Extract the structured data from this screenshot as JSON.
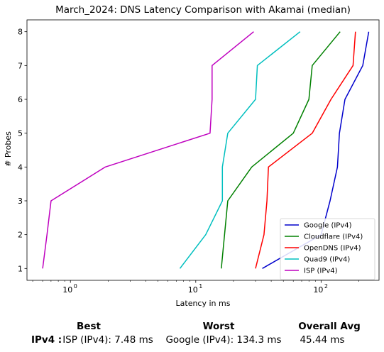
{
  "chart_data": {
    "type": "line",
    "title": "March_2024: DNS Latency Comparison with Akamai (median)",
    "xlabel": "Latency in ms",
    "ylabel": "# Probes",
    "xscale": "log",
    "xlim": [
      0.45,
      290
    ],
    "ylim": [
      0.65,
      8.35
    ],
    "xticks": [
      {
        "value": 1,
        "base": "10",
        "exp": "0"
      },
      {
        "value": 10,
        "base": "10",
        "exp": "1"
      },
      {
        "value": 100,
        "base": "10",
        "exp": "2"
      }
    ],
    "yticks": [
      "1",
      "2",
      "3",
      "4",
      "5",
      "6",
      "7",
      "8"
    ],
    "legend_position": "lower-right",
    "series": [
      {
        "name": "Google (IPv4)",
        "color": "#0000cc",
        "points": [
          [
            34,
            1
          ],
          [
            100,
            2
          ],
          [
            118,
            3
          ],
          [
            135,
            4
          ],
          [
            140,
            5
          ],
          [
            155,
            6
          ],
          [
            215,
            7
          ],
          [
            240,
            8
          ]
        ]
      },
      {
        "name": "Cloudflare (IPv4)",
        "color": "#008000",
        "points": [
          [
            16,
            1
          ],
          [
            18,
            3
          ],
          [
            28,
            4
          ],
          [
            60,
            5
          ],
          [
            80,
            6
          ],
          [
            85,
            7
          ],
          [
            142,
            8
          ]
        ]
      },
      {
        "name": "OpenDNS (IPv4)",
        "color": "#ff0000",
        "points": [
          [
            30,
            1
          ],
          [
            35,
            2
          ],
          [
            37,
            3
          ],
          [
            38,
            4
          ],
          [
            85,
            5
          ],
          [
            120,
            6
          ],
          [
            180,
            7
          ],
          [
            188,
            8
          ]
        ]
      },
      {
        "name": "Quad9 (IPv4)",
        "color": "#00bfbf",
        "points": [
          [
            7.48,
            1
          ],
          [
            12,
            2
          ],
          [
            16.3,
            3
          ],
          [
            16.3,
            4
          ],
          [
            18,
            5
          ],
          [
            30,
            6
          ],
          [
            31,
            7
          ],
          [
            68,
            8
          ]
        ]
      },
      {
        "name": "ISP (IPv4)",
        "color": "#bf00bf",
        "points": [
          [
            0.6,
            1
          ],
          [
            0.65,
            2
          ],
          [
            0.7,
            3
          ],
          [
            1.9,
            4
          ],
          [
            13,
            5
          ],
          [
            13.5,
            6
          ],
          [
            13.5,
            7
          ],
          [
            29,
            8
          ]
        ]
      }
    ]
  },
  "summary": {
    "best_label": "Best",
    "worst_label": "Worst",
    "avg_label": "Overall Avg",
    "row_label": "IPv4 :",
    "best_value": "ISP (IPv4): 7.48 ms",
    "worst_value": "Google (IPv4): 134.3 ms",
    "avg_value": "45.44 ms"
  }
}
